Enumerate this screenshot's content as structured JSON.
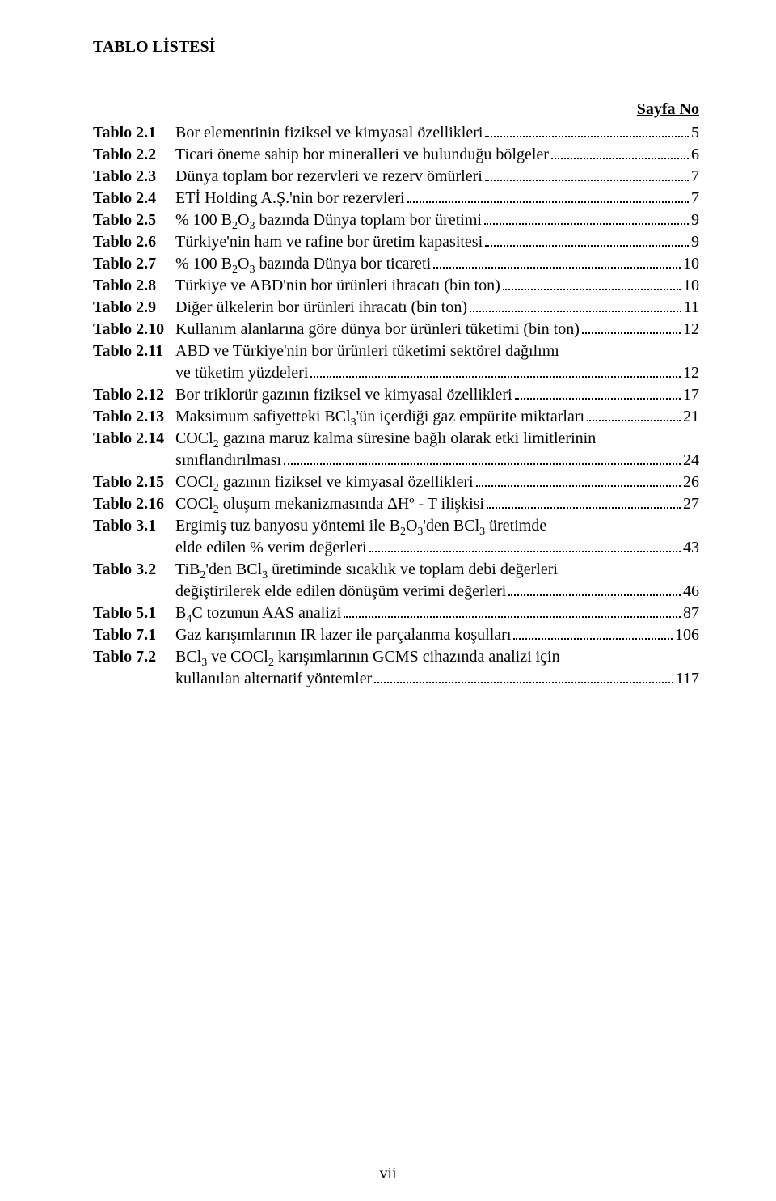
{
  "title": "TABLO LİSTESİ",
  "page_no_header": "Sayfa No",
  "entries": [
    {
      "label": "Tablo 2.1",
      "desc": "Bor elementinin fiziksel ve kimyasal özellikleri",
      "page": "5"
    },
    {
      "label": "Tablo 2.2",
      "desc": "Ticari öneme sahip bor mineralleri ve bulunduğu bölgeler",
      "page": "6"
    },
    {
      "label": "Tablo 2.3",
      "desc": "Dünya toplam bor rezervleri ve rezerv ömürleri",
      "page": "7"
    },
    {
      "label": "Tablo 2.4",
      "desc": "ETİ Holding A.Ş.'nin bor rezervleri",
      "page": "7"
    },
    {
      "label": "Tablo 2.5",
      "desc": "% 100 B₂O₃ bazında Dünya toplam bor üretimi",
      "page": "9"
    },
    {
      "label": "Tablo 2.6",
      "desc": "Türkiye'nin ham ve rafine bor üretim kapasitesi",
      "page": "9"
    },
    {
      "label": "Tablo 2.7",
      "desc": "% 100 B₂O₃ bazında Dünya bor ticareti",
      "page": "10"
    },
    {
      "label": "Tablo 2.8",
      "desc": "Türkiye ve ABD'nin bor ürünleri ihracatı (bin ton)",
      "page": "10"
    },
    {
      "label": "Tablo 2.9",
      "desc": "Diğer ülkelerin bor ürünleri ihracatı (bin ton)",
      "page": "11"
    },
    {
      "label": "Tablo 2.10",
      "desc": "Kullanım alanlarına göre dünya bor ürünleri tüketimi (bin ton)",
      "page": "12"
    },
    {
      "label": "Tablo 2.11",
      "desc1": "ABD ve Türkiye'nin bor ürünleri tüketimi sektörel dağılımı",
      "desc2": "ve tüketim yüzdeleri",
      "page": "12",
      "multiline": true
    },
    {
      "label": "Tablo 2.12",
      "desc": "Bor triklorür gazının fiziksel ve kimyasal özellikleri",
      "page": "17"
    },
    {
      "label": "Tablo 2.13",
      "desc": "Maksimum safiyetteki BCl₃'ün içerdiği gaz empürite miktarları",
      "page": "21"
    },
    {
      "label": "Tablo 2.14",
      "desc1": "COCl₂ gazına maruz kalma süresine bağlı olarak etki limitlerinin",
      "desc2": "sınıflandırılması",
      "page": "24",
      "multiline": true
    },
    {
      "label": "Tablo 2.15",
      "desc": "COCl₂ gazının fiziksel ve kimyasal özellikleri",
      "page": "26"
    },
    {
      "label": "Tablo 2.16",
      "desc": "COCl₂ oluşum mekanizmasında ΔHº - T ilişkisi",
      "page": "27"
    },
    {
      "label": "Tablo 3.1",
      "desc1": "Ergimiş tuz banyosu yöntemi ile B₂O₃'den BCl₃ üretimde",
      "desc2": "elde edilen % verim değerleri",
      "page": "43",
      "multiline": true
    },
    {
      "label": "Tablo 3.2",
      "desc1": "TiB₂'den BCl₃ üretiminde sıcaklık ve toplam debi değerleri",
      "desc2": "değiştirilerek elde edilen dönüşüm verimi değerleri",
      "page": "46",
      "multiline": true
    },
    {
      "label": "Tablo 5.1",
      "desc": "B₄C tozunun AAS analizi",
      "page": "87"
    },
    {
      "label": "Tablo 7.1",
      "desc": "Gaz karışımlarının IR lazer ile parçalanma koşulları",
      "page": "106"
    },
    {
      "label": "Tablo 7.2",
      "desc1": "BCl₃ ve COCl₂ karışımlarının GCMS cihazında analizi için",
      "desc2": "kullanılan alternatif yöntemler",
      "page": "117",
      "multiline": true
    }
  ],
  "roman_page": "vii"
}
